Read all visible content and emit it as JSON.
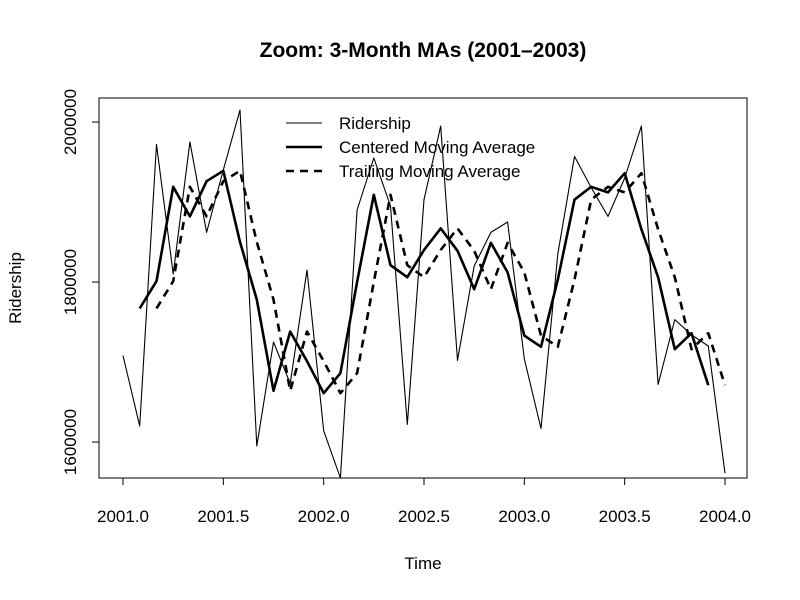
{
  "chart_data": {
    "type": "line",
    "title": "Zoom: 3-Month MAs (2001–2003)",
    "xlabel": "Time",
    "ylabel": "Ridership",
    "xlim": [
      2001.0,
      2004.0
    ],
    "ylim": [
      1555000,
      2030000
    ],
    "x_ticks": [
      "2001.0",
      "2001.5",
      "2002.0",
      "2002.5",
      "2003.0",
      "2003.5",
      "2004.0"
    ],
    "y_ticks": [
      "1600000",
      "1800000",
      "2000000"
    ],
    "x_tick_values": [
      2001.0,
      2001.5,
      2002.0,
      2002.5,
      2003.0,
      2003.5,
      2004.0
    ],
    "y_tick_values": [
      1600000,
      1800000,
      2000000
    ],
    "legend": "top-center",
    "grid": false,
    "series": [
      {
        "name": "Ridership",
        "style": "thin-solid",
        "x": [
          2001.0,
          2001.0833,
          2001.1667,
          2001.25,
          2001.3333,
          2001.4167,
          2001.5,
          2001.5833,
          2001.6667,
          2001.75,
          2001.8333,
          2001.9167,
          2002.0,
          2002.0833,
          2002.1667,
          2002.25,
          2002.3333,
          2002.4167,
          2002.5,
          2002.5833,
          2002.6667,
          2002.75,
          2002.8333,
          2002.9167,
          2003.0,
          2003.0833,
          2003.1667,
          2003.25,
          2003.3333,
          2003.4167,
          2003.5,
          2003.5833,
          2003.6667,
          2003.75,
          2003.8333,
          2003.9167,
          2004.0
        ],
        "values": [
          1708000,
          1620000,
          1972000,
          1810000,
          1975000,
          1862000,
          1940000,
          2015000,
          1595000,
          1725000,
          1673000,
          1815000,
          1614000,
          1555000,
          1890000,
          1955000,
          1895000,
          1622000,
          1903000,
          1995000,
          1702000,
          1820000,
          1862000,
          1875000,
          1704000,
          1617000,
          1835000,
          1957000,
          1918000,
          1882000,
          1930000,
          1995000,
          1672000,
          1753000,
          1734000,
          1720000,
          1561000
        ]
      },
      {
        "name": "Centered Moving Average",
        "style": "thick-solid",
        "x": [
          2001.0833,
          2001.1667,
          2001.25,
          2001.3333,
          2001.4167,
          2001.5,
          2001.5833,
          2001.6667,
          2001.75,
          2001.8333,
          2001.9167,
          2002.0,
          2002.0833,
          2002.1667,
          2002.25,
          2002.3333,
          2002.4167,
          2002.5,
          2002.5833,
          2002.6667,
          2002.75,
          2002.8333,
          2002.9167,
          2003.0,
          2003.0833,
          2003.1667,
          2003.25,
          2003.3333,
          2003.4167,
          2003.5,
          2003.5833,
          2003.6667,
          2003.75,
          2003.8333,
          2003.9167
        ],
        "values": [
          1767000,
          1801000,
          1919000,
          1882000,
          1926000,
          1939000,
          1850000,
          1778000,
          1664000,
          1738000,
          1701000,
          1661000,
          1686000,
          1800000,
          1909000,
          1821000,
          1806000,
          1840000,
          1867000,
          1839000,
          1791000,
          1849000,
          1812000,
          1733000,
          1719000,
          1803000,
          1903000,
          1919000,
          1912000,
          1936000,
          1866000,
          1806000,
          1716000,
          1736000,
          1671000
        ]
      },
      {
        "name": "Trailing Moving Average",
        "style": "thick-dashed",
        "x": [
          2001.1667,
          2001.25,
          2001.3333,
          2001.4167,
          2001.5,
          2001.5833,
          2001.6667,
          2001.75,
          2001.8333,
          2001.9167,
          2002.0,
          2002.0833,
          2002.1667,
          2002.25,
          2002.3333,
          2002.4167,
          2002.5,
          2002.5833,
          2002.6667,
          2002.75,
          2002.8333,
          2002.9167,
          2003.0,
          2003.0833,
          2003.1667,
          2003.25,
          2003.3333,
          2003.4167,
          2003.5,
          2003.5833,
          2003.6667,
          2003.75,
          2003.8333,
          2003.9167,
          2004.0
        ],
        "values": [
          1767000,
          1801000,
          1919000,
          1882000,
          1926000,
          1939000,
          1850000,
          1778000,
          1664000,
          1738000,
          1701000,
          1661000,
          1686000,
          1800000,
          1909000,
          1821000,
          1806000,
          1840000,
          1867000,
          1839000,
          1791000,
          1849000,
          1812000,
          1733000,
          1719000,
          1803000,
          1903000,
          1919000,
          1912000,
          1936000,
          1866000,
          1806000,
          1716000,
          1736000,
          1671000
        ]
      }
    ]
  }
}
